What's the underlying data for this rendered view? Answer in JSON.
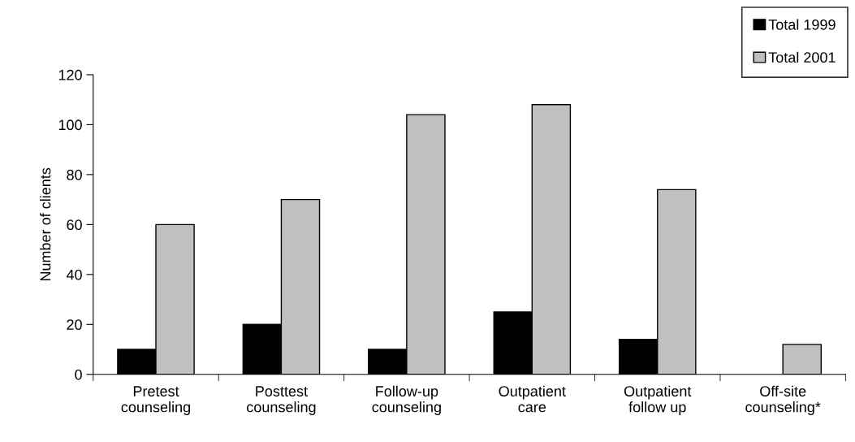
{
  "chart_data": {
    "type": "bar",
    "ylabel": "Number of clients",
    "categories": [
      "Pretest\ncounseling",
      "Posttest\ncounseling",
      "Follow-up\ncounseling",
      "Outpatient\ncare",
      "Outpatient\nfollow up",
      "Off-site\ncounseling*"
    ],
    "series": [
      {
        "name": "Total 1999",
        "color": "#000000",
        "values": [
          10,
          20,
          10,
          25,
          14,
          null
        ]
      },
      {
        "name": "Total 2001",
        "color": "#c0c0c0",
        "values": [
          60,
          70,
          104,
          108,
          74,
          12
        ]
      }
    ],
    "ylim": [
      0,
      120
    ],
    "yticks": [
      0,
      20,
      40,
      60,
      80,
      100,
      120
    ],
    "grid": false,
    "legend": "top right"
  }
}
